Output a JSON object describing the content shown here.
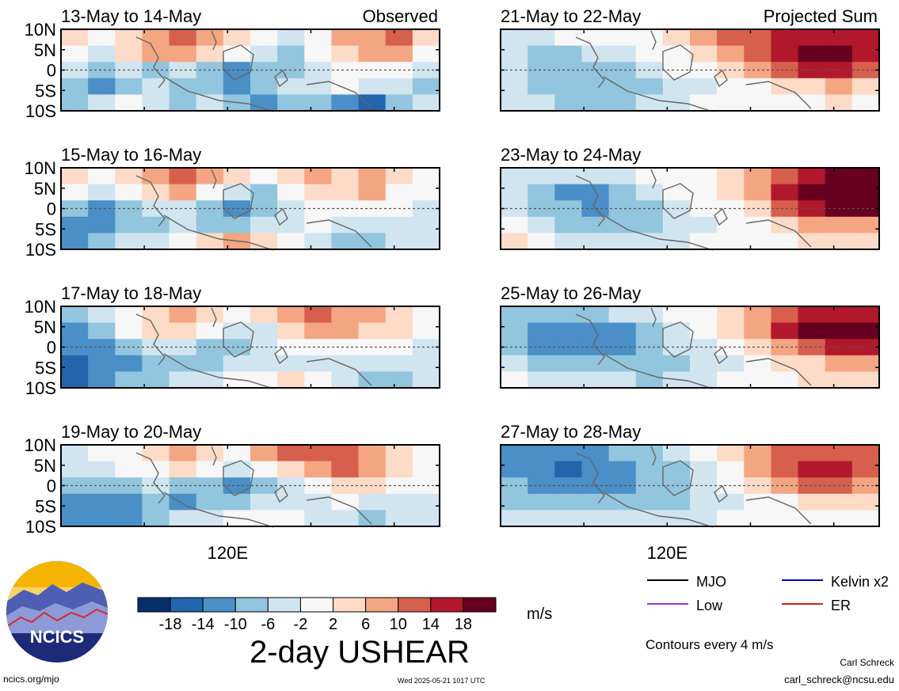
{
  "chart_data": {
    "type": "heatmap",
    "title": "2-day USHEAR",
    "units": "m/s",
    "colorbar": {
      "tick_labels": [
        "-18",
        "-14",
        "-10",
        "-6",
        "-2",
        "2",
        "6",
        "10",
        "14",
        "18"
      ],
      "colors": [
        "#08306b",
        "#2166ac",
        "#4a8fc7",
        "#92c5de",
        "#d1e5f0",
        "#f7f7f7",
        "#fddbc7",
        "#f4a582",
        "#d6604d",
        "#b2182b",
        "#67001f"
      ]
    },
    "lat_ticks": [
      "10N",
      "5N",
      "0",
      "5S",
      "10S"
    ],
    "lon_tick": "120E",
    "columns": [
      {
        "label": "Observed"
      },
      {
        "label": "Projected Sum"
      }
    ],
    "panels": [
      {
        "title": "13-May to 14-May",
        "col": 0,
        "field": [
          [
            1,
            0,
            1,
            2,
            3,
            2,
            1,
            0,
            -1,
            0,
            2,
            2,
            3,
            1
          ],
          [
            0,
            -1,
            1,
            2,
            2,
            1,
            0,
            -1,
            -2,
            0,
            1,
            2,
            2,
            0
          ],
          [
            -1,
            -2,
            -1,
            -2,
            -1,
            -2,
            -3,
            -2,
            -2,
            -1,
            0,
            0,
            0,
            -1
          ],
          [
            -2,
            -3,
            -2,
            -1,
            -2,
            -2,
            -3,
            -2,
            -1,
            -1,
            0,
            -1,
            -1,
            -2
          ],
          [
            -2,
            -1,
            0,
            -1,
            -2,
            -1,
            -2,
            -3,
            -2,
            -2,
            -3,
            -4,
            -2,
            -1
          ]
        ]
      },
      {
        "title": "21-May to 22-May",
        "col": 1,
        "field": [
          [
            -1,
            -1,
            0,
            0,
            0,
            0,
            1,
            2,
            3,
            3,
            4,
            4,
            4,
            4
          ],
          [
            -1,
            -2,
            -2,
            -1,
            -1,
            0,
            0,
            1,
            2,
            3,
            4,
            5,
            6,
            4
          ],
          [
            -1,
            -2,
            -2,
            -2,
            -2,
            -1,
            0,
            0,
            1,
            2,
            3,
            4,
            4,
            3
          ],
          [
            -1,
            -2,
            -2,
            -2,
            -2,
            -2,
            -1,
            -1,
            0,
            0,
            1,
            1,
            2,
            1
          ],
          [
            -1,
            -1,
            -2,
            -2,
            -2,
            -1,
            -1,
            0,
            0,
            0,
            0,
            0,
            1,
            0
          ]
        ]
      },
      {
        "title": "15-May to 16-May",
        "col": 0,
        "field": [
          [
            1,
            0,
            1,
            2,
            3,
            2,
            1,
            0,
            1,
            2,
            1,
            2,
            1,
            0
          ],
          [
            0,
            -1,
            0,
            1,
            2,
            0,
            -1,
            -2,
            0,
            1,
            1,
            2,
            0,
            0
          ],
          [
            -2,
            -3,
            -2,
            -1,
            -1,
            -2,
            -3,
            -2,
            -1,
            0,
            0,
            0,
            0,
            -1
          ],
          [
            -3,
            -3,
            -2,
            -2,
            -1,
            -2,
            -2,
            -1,
            -1,
            0,
            -1,
            -1,
            -1,
            -1
          ],
          [
            -3,
            -2,
            -1,
            -1,
            0,
            1,
            2,
            1,
            0,
            -1,
            -2,
            -2,
            -1,
            -1
          ]
        ]
      },
      {
        "title": "23-May to 24-May",
        "col": 1,
        "field": [
          [
            -1,
            -1,
            -1,
            -1,
            -1,
            0,
            0,
            0,
            1,
            2,
            3,
            4,
            5,
            5
          ],
          [
            -1,
            -2,
            -3,
            -3,
            -2,
            -1,
            0,
            0,
            1,
            2,
            4,
            5,
            6,
            6
          ],
          [
            -1,
            -2,
            -2,
            -3,
            -2,
            -2,
            -1,
            0,
            0,
            1,
            3,
            4,
            5,
            5
          ],
          [
            0,
            -1,
            -2,
            -2,
            -2,
            -2,
            -1,
            -1,
            0,
            0,
            1,
            2,
            2,
            2
          ],
          [
            1,
            0,
            -1,
            -1,
            -1,
            -1,
            -1,
            0,
            0,
            0,
            0,
            1,
            1,
            1
          ]
        ]
      },
      {
        "title": "17-May to 18-May",
        "col": 0,
        "field": [
          [
            -2,
            -1,
            0,
            1,
            2,
            1,
            0,
            1,
            2,
            3,
            2,
            2,
            1,
            0
          ],
          [
            -3,
            -2,
            0,
            1,
            1,
            0,
            -1,
            -1,
            1,
            2,
            2,
            1,
            1,
            0
          ],
          [
            -3,
            -3,
            -2,
            -1,
            -1,
            -2,
            -2,
            -1,
            0,
            0,
            0,
            0,
            0,
            -1
          ],
          [
            -4,
            -3,
            -3,
            -2,
            -2,
            -2,
            -1,
            -1,
            -1,
            -1,
            -1,
            -1,
            -1,
            -1
          ],
          [
            -4,
            -3,
            -2,
            -2,
            -1,
            -1,
            0,
            0,
            1,
            0,
            -1,
            -2,
            -2,
            -1
          ]
        ]
      },
      {
        "title": "25-May to 26-May",
        "col": 1,
        "field": [
          [
            -2,
            -2,
            -2,
            -2,
            -1,
            -1,
            0,
            0,
            1,
            2,
            3,
            4,
            4,
            4
          ],
          [
            -2,
            -3,
            -3,
            -3,
            -3,
            -2,
            -1,
            0,
            1,
            2,
            4,
            5,
            6,
            5
          ],
          [
            -2,
            -3,
            -3,
            -3,
            -3,
            -2,
            -1,
            -1,
            0,
            1,
            2,
            3,
            4,
            4
          ],
          [
            -1,
            -2,
            -2,
            -2,
            -2,
            -2,
            -2,
            -1,
            -1,
            0,
            1,
            1,
            2,
            2
          ],
          [
            0,
            -1,
            -1,
            -1,
            -1,
            -2,
            -1,
            -1,
            0,
            0,
            0,
            1,
            1,
            1
          ]
        ]
      },
      {
        "title": "19-May to 20-May",
        "col": 0,
        "field": [
          [
            -1,
            0,
            0,
            1,
            2,
            1,
            0,
            2,
            3,
            3,
            3,
            2,
            1,
            0
          ],
          [
            -1,
            -1,
            0,
            0,
            1,
            0,
            -1,
            0,
            1,
            2,
            3,
            2,
            1,
            0
          ],
          [
            -2,
            -2,
            -2,
            -1,
            -2,
            -2,
            -3,
            -2,
            -1,
            0,
            1,
            1,
            0,
            0
          ],
          [
            -3,
            -3,
            -3,
            -2,
            -3,
            -2,
            -2,
            -1,
            -1,
            -1,
            0,
            -1,
            -1,
            -1
          ],
          [
            -3,
            -3,
            -3,
            -2,
            -1,
            -1,
            0,
            0,
            0,
            -1,
            -1,
            -2,
            -1,
            -1
          ]
        ]
      },
      {
        "title": "27-May to 28-May",
        "col": 1,
        "field": [
          [
            -3,
            -3,
            -3,
            -3,
            -2,
            -2,
            -1,
            0,
            1,
            2,
            3,
            3,
            3,
            3
          ],
          [
            -3,
            -3,
            -4,
            -3,
            -3,
            -2,
            -2,
            -1,
            0,
            2,
            3,
            4,
            4,
            3
          ],
          [
            -2,
            -3,
            -3,
            -3,
            -3,
            -2,
            -2,
            -1,
            0,
            1,
            2,
            3,
            3,
            2
          ],
          [
            -2,
            -2,
            -2,
            -2,
            -2,
            -2,
            -2,
            -1,
            -1,
            0,
            0,
            1,
            1,
            1
          ],
          [
            -1,
            -1,
            -1,
            -1,
            -1,
            -1,
            -1,
            -1,
            0,
            0,
            0,
            0,
            0,
            0
          ]
        ]
      }
    ],
    "legend": {
      "note": "Contours every 4 m/s",
      "items": [
        {
          "label": "MJO",
          "color": "#000000"
        },
        {
          "label": "Kelvin x2",
          "color": "#0000cc"
        },
        {
          "label": "Low",
          "color": "#9933ee"
        },
        {
          "label": "ER",
          "color": "#cc2222"
        }
      ]
    }
  },
  "footer": {
    "logo_text": "NCICS",
    "url": "ncics.org/mjo",
    "timestamp": "Wed 2025-05-21 1017 UTC",
    "author": "Carl Schreck",
    "email": "carl_schreck@ncsu.edu"
  }
}
